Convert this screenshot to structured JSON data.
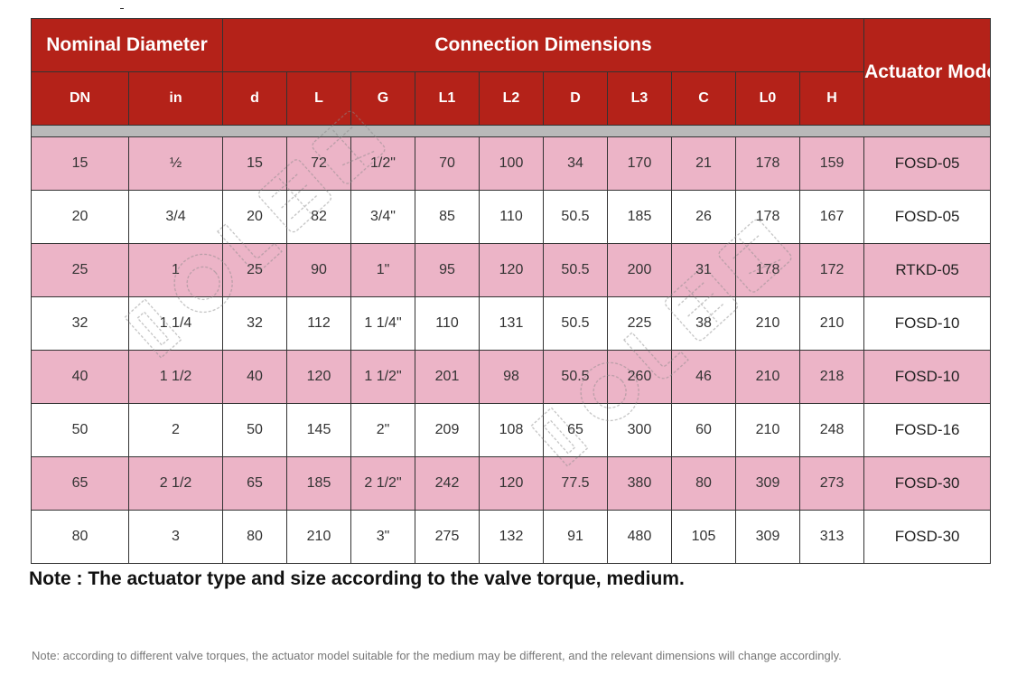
{
  "table": {
    "group_headers": {
      "nominal": "Nominal Diameter",
      "connection": "Connection Dimensions",
      "actuator": "Actuator Model"
    },
    "sub_headers": [
      "DN",
      "in",
      "d",
      "L",
      "G",
      "L1",
      "L2",
      "D",
      "L3",
      "C",
      "L0",
      "H"
    ],
    "rows": [
      [
        "15",
        "½",
        "15",
        "72",
        "1/2\"",
        "70",
        "100",
        "34",
        "170",
        "21",
        "178",
        "159",
        "FOSD-05"
      ],
      [
        "20",
        "3/4",
        "20",
        "82",
        "3/4\"",
        "85",
        "110",
        "50.5",
        "185",
        "26",
        "178",
        "167",
        "FOSD-05"
      ],
      [
        "25",
        "1",
        "25",
        "90",
        "1\"",
        "95",
        "120",
        "50.5",
        "200",
        "31",
        "178",
        "172",
        "RTKD-05"
      ],
      [
        "32",
        "1 1/4",
        "32",
        "112",
        "1 1/4\"",
        "110",
        "131",
        "50.5",
        "225",
        "38",
        "210",
        "210",
        "FOSD-10"
      ],
      [
        "40",
        "1 1/2",
        "40",
        "120",
        "1 1/2\"",
        "201",
        "98",
        "50.5",
        "260",
        "46",
        "210",
        "218",
        "FOSD-10"
      ],
      [
        "50",
        "2",
        "50",
        "145",
        "2\"",
        "209",
        "108",
        "65",
        "300",
        "60",
        "210",
        "248",
        "FOSD-16"
      ],
      [
        "65",
        "2 1/2",
        "65",
        "185",
        "2 1/2\"",
        "242",
        "120",
        "77.5",
        "380",
        "80",
        "309",
        "273",
        "FOSD-30"
      ],
      [
        "80",
        "3",
        "80",
        "210",
        "3\"",
        "275",
        "132",
        "91",
        "480",
        "105",
        "309",
        "313",
        "FOSD-30"
      ]
    ]
  },
  "notes": {
    "main": "Note : The actuator type and size according to the valve torque, medium.",
    "small": "Note: according to different valve torques, the actuator model suitable for the medium may be different, and the relevant dimensions will change accordingly."
  },
  "colors": {
    "header_red": "#b42219",
    "row_pink": "#ecb4c7",
    "gap_gray": "#b9b9b9"
  }
}
